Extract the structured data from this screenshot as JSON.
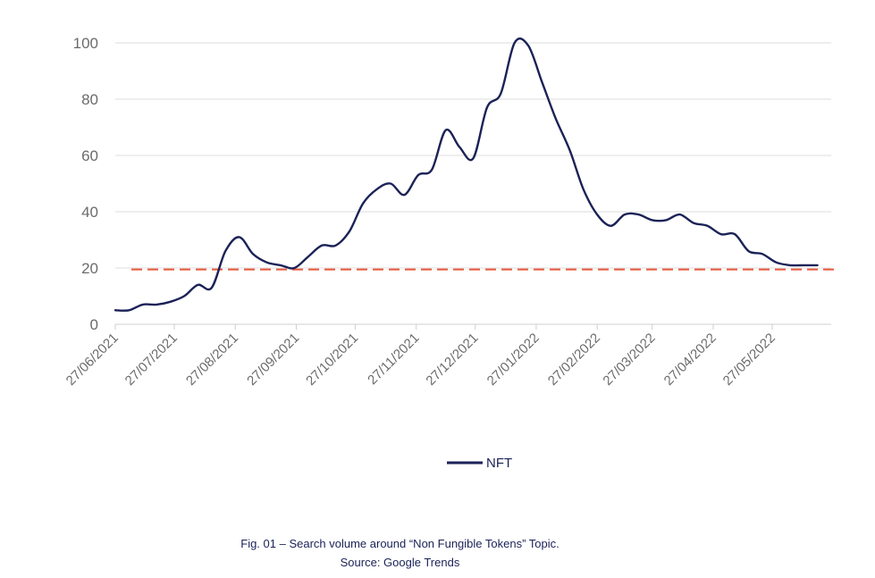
{
  "chart_data": {
    "type": "line",
    "xticks": [
      "27/06/2021",
      "27/07/2021",
      "27/08/2021",
      "27/09/2021",
      "27/10/2021",
      "27/11/2021",
      "27/12/2021",
      "27/01/2022",
      "27/02/2022",
      "27/03/2022",
      "27/04/2022",
      "27/05/2022"
    ],
    "yticks": [
      "0",
      "20",
      "40",
      "60",
      "80",
      "100"
    ],
    "ylim": [
      0,
      100
    ],
    "xlim": [
      "2021-06-27",
      "2022-06-26"
    ],
    "grid": "horizontal",
    "legend_position": "bottom-center",
    "series": [
      {
        "name": "NFT",
        "color": "#1b2257",
        "points": [
          [
            "2021-06-27",
            5
          ],
          [
            "2021-07-04",
            5
          ],
          [
            "2021-07-11",
            7
          ],
          [
            "2021-07-18",
            7
          ],
          [
            "2021-07-25",
            8
          ],
          [
            "2021-08-01",
            10
          ],
          [
            "2021-08-08",
            14
          ],
          [
            "2021-08-15",
            13
          ],
          [
            "2021-08-22",
            26
          ],
          [
            "2021-08-29",
            31
          ],
          [
            "2021-09-05",
            25
          ],
          [
            "2021-09-12",
            22
          ],
          [
            "2021-09-19",
            21
          ],
          [
            "2021-09-26",
            20
          ],
          [
            "2021-10-03",
            24
          ],
          [
            "2021-10-10",
            28
          ],
          [
            "2021-10-17",
            28
          ],
          [
            "2021-10-24",
            33
          ],
          [
            "2021-10-31",
            43
          ],
          [
            "2021-11-07",
            48
          ],
          [
            "2021-11-14",
            50
          ],
          [
            "2021-11-21",
            46
          ],
          [
            "2021-11-28",
            53
          ],
          [
            "2021-12-05",
            55
          ],
          [
            "2021-12-12",
            69
          ],
          [
            "2021-12-19",
            63
          ],
          [
            "2021-12-26",
            59
          ],
          [
            "2022-01-02",
            77
          ],
          [
            "2022-01-09",
            82
          ],
          [
            "2022-01-16",
            100
          ],
          [
            "2022-01-23",
            99
          ],
          [
            "2022-01-30",
            86
          ],
          [
            "2022-02-06",
            73
          ],
          [
            "2022-02-13",
            62
          ],
          [
            "2022-02-20",
            48
          ],
          [
            "2022-02-27",
            39
          ],
          [
            "2022-03-06",
            35
          ],
          [
            "2022-03-13",
            39
          ],
          [
            "2022-03-20",
            39
          ],
          [
            "2022-03-27",
            37
          ],
          [
            "2022-04-03",
            37
          ],
          [
            "2022-04-10",
            39
          ],
          [
            "2022-04-17",
            36
          ],
          [
            "2022-04-24",
            35
          ],
          [
            "2022-05-01",
            32
          ],
          [
            "2022-05-08",
            32
          ],
          [
            "2022-05-15",
            26
          ],
          [
            "2022-05-22",
            25
          ],
          [
            "2022-05-29",
            22
          ],
          [
            "2022-06-05",
            21
          ],
          [
            "2022-06-12",
            21
          ],
          [
            "2022-06-19",
            21
          ]
        ]
      }
    ],
    "reference_line": {
      "value": 19.5,
      "color": "#e8563a",
      "style": "dashed"
    }
  },
  "caption": {
    "line1": "Fig. 01 – Search volume around “Non Fungible Tokens” Topic.",
    "line2": "Source: Google Trends"
  }
}
